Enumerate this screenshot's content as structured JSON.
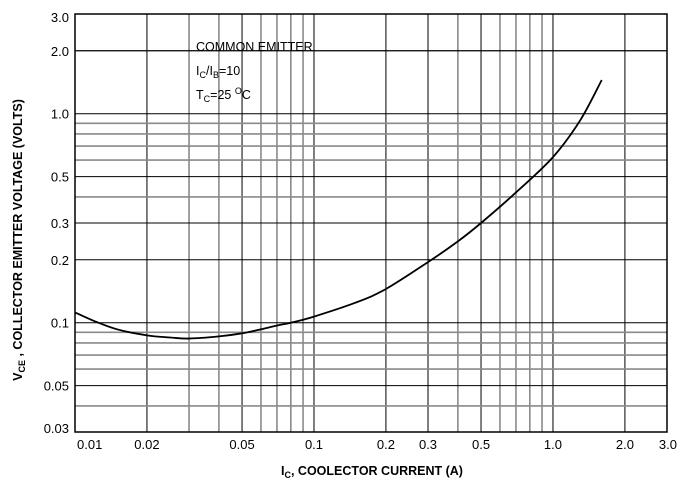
{
  "chart_data": {
    "type": "line",
    "x_scale": "log",
    "y_scale": "log",
    "xlim": [
      0.01,
      3.0
    ],
    "ylim": [
      0.03,
      3.0
    ],
    "grid": true,
    "x_tick_labels": [
      "0.01",
      "0.02",
      "0.05",
      "0.1",
      "0.2",
      "0.3",
      "0.5",
      "1.0",
      "2.0",
      "3.0"
    ],
    "x_tick_values": [
      0.01,
      0.02,
      0.05,
      0.1,
      0.2,
      0.3,
      0.5,
      1.0,
      2.0,
      3.0
    ],
    "y_tick_labels": [
      "3.0",
      "2.0",
      "1.0",
      "0.5",
      "0.3",
      "0.2",
      "0.1",
      "0.05",
      "0.03"
    ],
    "y_tick_values": [
      3.0,
      2.0,
      1.0,
      0.5,
      0.3,
      0.2,
      0.1,
      0.05,
      0.03
    ],
    "xlabel": {
      "main": "I",
      "sub": "C",
      "rest": ", COOLECTOR CURRENT (A)"
    },
    "ylabel": {
      "main": "V",
      "sub": "CE",
      "rest": " , COLLECTOR EMITTER VOLTAGE (VOLTS)"
    },
    "annotation": {
      "line1": "COMMON EMITTER",
      "line2": {
        "a": "I",
        "a_sub": "C",
        "b": "/I",
        "b_sub": "B",
        "c": "=10"
      },
      "line3": {
        "a": "T",
        "a_sub": "C",
        "b": "=25 ",
        "b_sup": "O",
        "c": "C"
      }
    },
    "series": [
      {
        "x": [
          0.01,
          0.012,
          0.015,
          0.02,
          0.025,
          0.03,
          0.04,
          0.05,
          0.06,
          0.07,
          0.08,
          0.1,
          0.15,
          0.2,
          0.3,
          0.4,
          0.5,
          0.7,
          1.0,
          1.3,
          1.6
        ],
        "y": [
          0.112,
          0.102,
          0.093,
          0.087,
          0.085,
          0.084,
          0.086,
          0.089,
          0.093,
          0.097,
          0.1,
          0.107,
          0.125,
          0.145,
          0.195,
          0.245,
          0.3,
          0.42,
          0.62,
          0.93,
          1.45
        ]
      }
    ]
  }
}
